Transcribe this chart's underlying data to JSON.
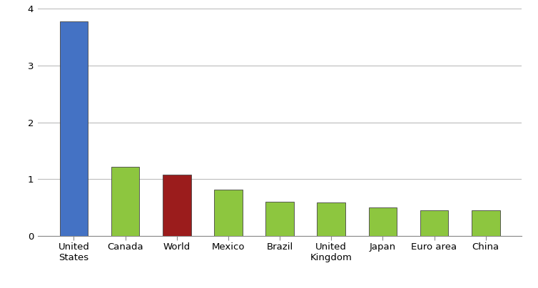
{
  "categories": [
    "United\nStates",
    "Canada",
    "World",
    "Mexico",
    "Brazil",
    "United\nKingdom",
    "Japan",
    "Euro area",
    "China"
  ],
  "values": [
    3.78,
    1.22,
    1.08,
    0.82,
    0.6,
    0.59,
    0.5,
    0.46,
    0.45
  ],
  "bar_colors": [
    "#4472C4",
    "#8DC63F",
    "#9B1C1C",
    "#8DC63F",
    "#8DC63F",
    "#8DC63F",
    "#8DC63F",
    "#8DC63F",
    "#8DC63F"
  ],
  "ylim": [
    0,
    4
  ],
  "yticks": [
    0,
    1,
    2,
    3,
    4
  ],
  "background_color": "#FFFFFF",
  "grid_color": "#BBBBBB",
  "bar_edge_color": "#444444",
  "tick_label_fontsize": 9.5,
  "bar_width": 0.55
}
